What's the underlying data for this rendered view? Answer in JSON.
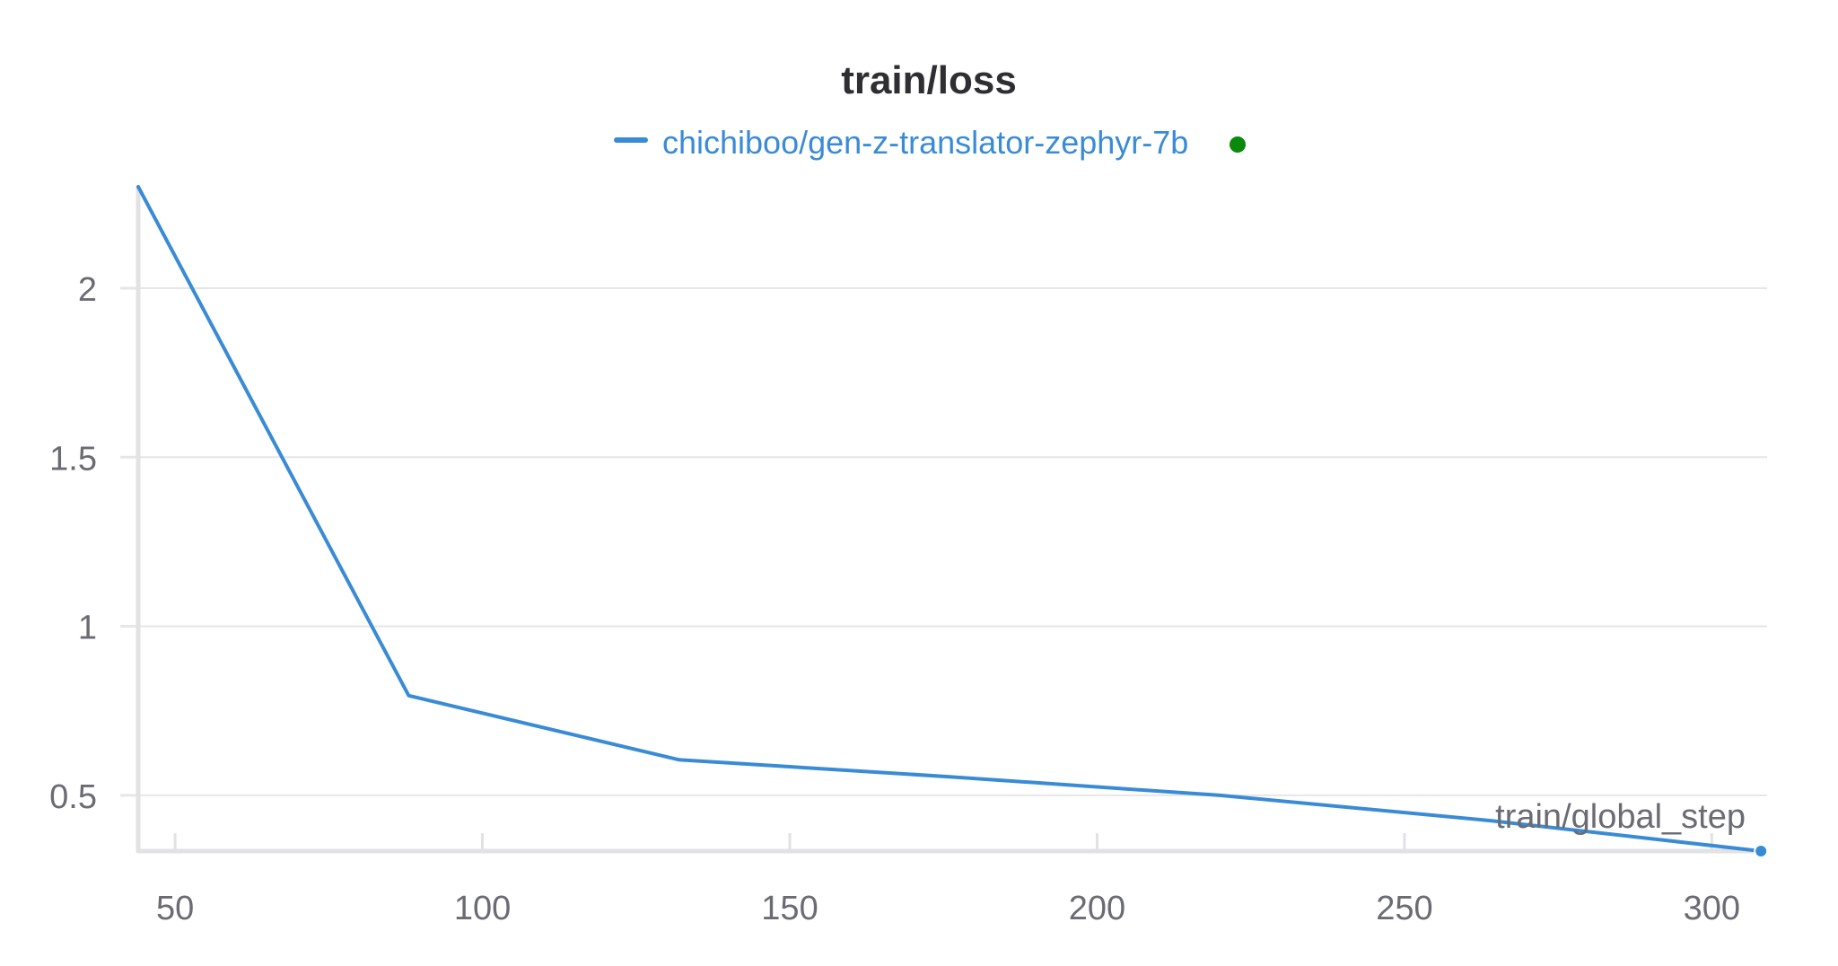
{
  "chart_data": {
    "type": "line",
    "title": "train/loss",
    "xlabel": "train/global_step",
    "ylabel": "",
    "xlim": [
      44,
      309
    ],
    "ylim": [
      0.335,
      2.3
    ],
    "x_ticks": [
      50,
      100,
      150,
      200,
      250,
      300
    ],
    "x_tick_labels": [
      "50",
      "100",
      "150",
      "200",
      "250",
      "300"
    ],
    "y_ticks": [
      0.5,
      1,
      1.5,
      2
    ],
    "y_tick_labels": [
      "0.5",
      "1",
      "1.5",
      "2"
    ],
    "grid": true,
    "legend_position": "top-center",
    "series": [
      {
        "name": "chichiboo/gen-z-translator-zephyr-7b",
        "color": "#3a8bd6",
        "status_dot_color": "#0a8a0a",
        "x": [
          44,
          88,
          132,
          176,
          220,
          264,
          308
        ],
        "y": [
          2.3,
          0.795,
          0.605,
          0.555,
          0.5,
          0.425,
          0.335
        ]
      }
    ]
  }
}
